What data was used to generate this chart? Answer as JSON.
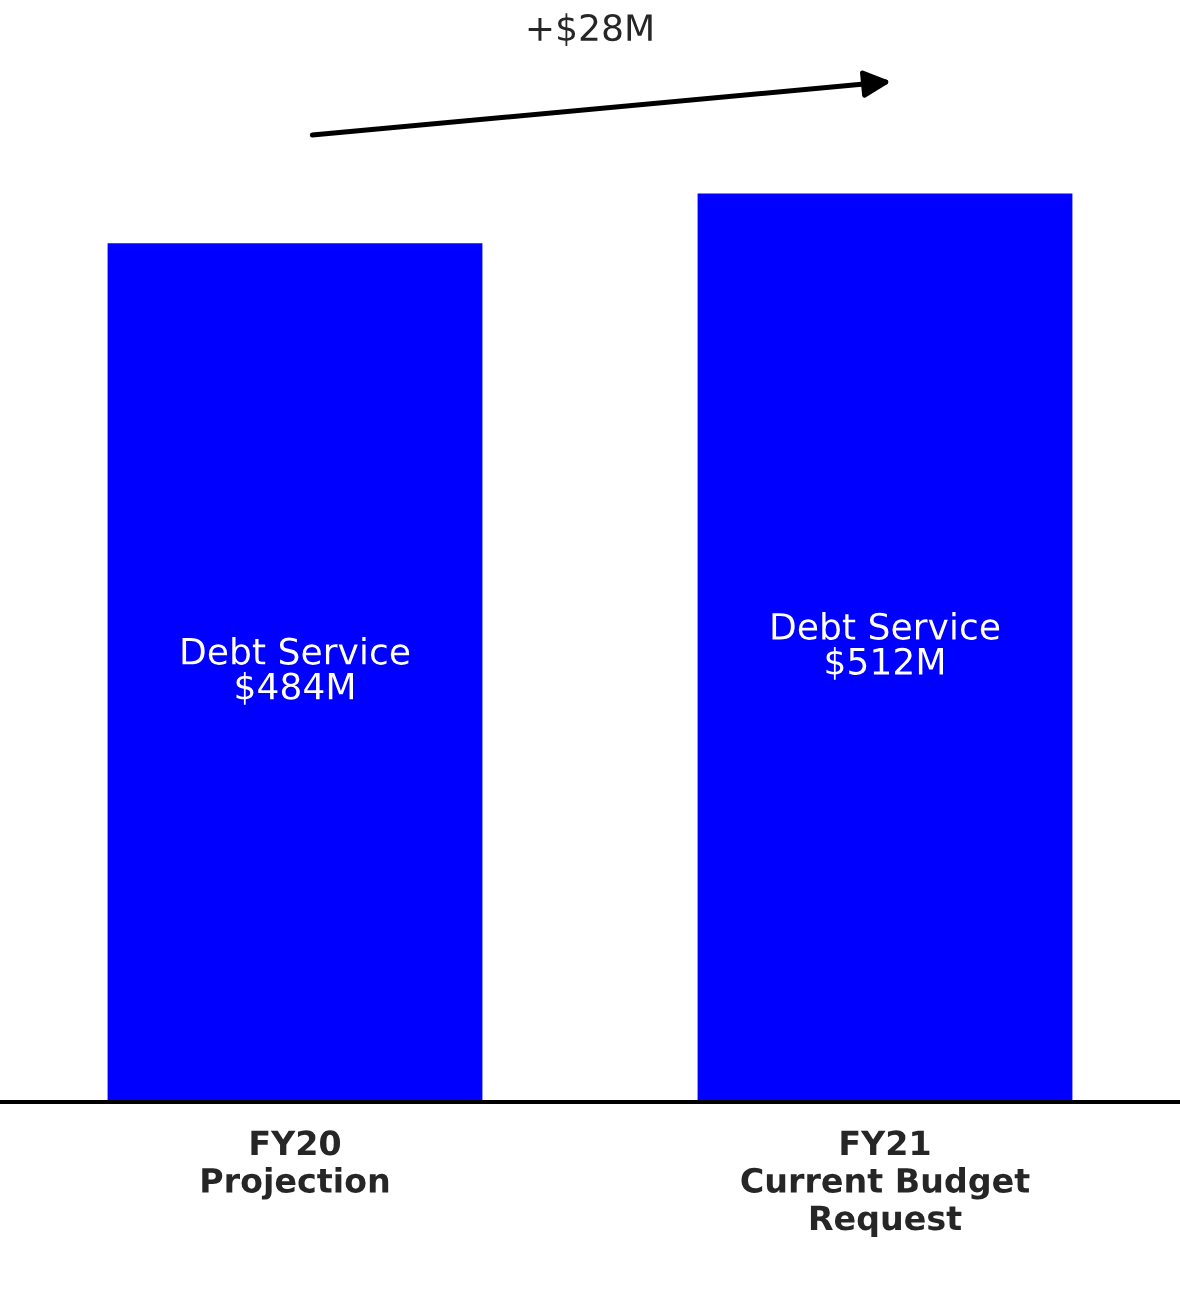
{
  "chart_data": {
    "type": "bar",
    "categories": [
      "FY20\nProjection",
      "FY21\nCurrent Budget\nRequest"
    ],
    "series": [
      {
        "name": "Debt Service",
        "color": "#0000ff",
        "values": [
          484,
          512
        ],
        "value_labels": [
          "$484M",
          "$512M"
        ]
      }
    ],
    "annotations": [
      "+$28M"
    ],
    "grid": false,
    "legend": false
  }
}
